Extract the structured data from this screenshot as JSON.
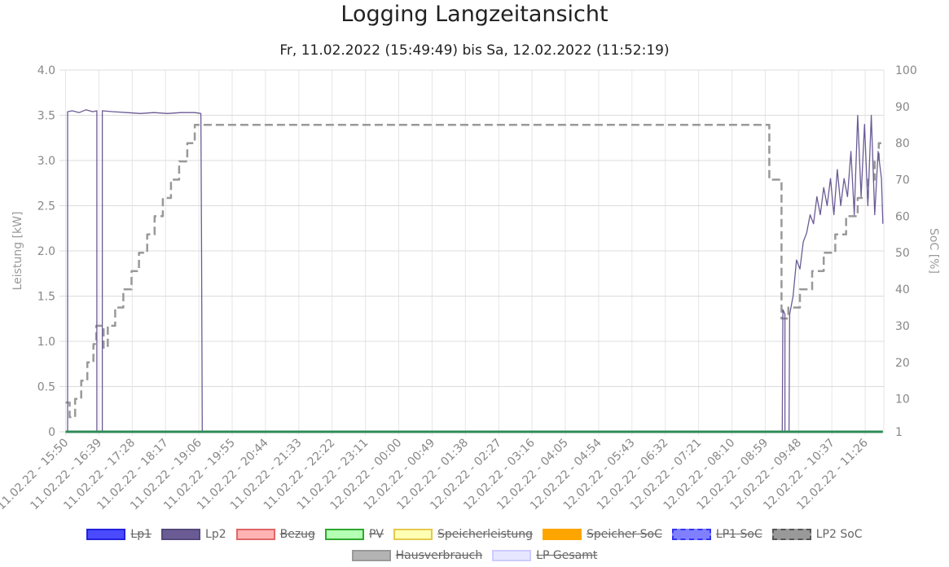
{
  "chart_data": {
    "type": "line",
    "title": "Logging Langzeitansicht",
    "subtitle": "Fr, 11.02.2022 (15:49:49) bis Sa, 12.02.2022 (11:52:19)",
    "ylabel": "Leistung [kW]",
    "y2label": "SoC [%]",
    "ylim": [
      0,
      4.0
    ],
    "y2lim": [
      1,
      100
    ],
    "y_ticks": [
      "0",
      "0.5",
      "1.0",
      "1.5",
      "2.0",
      "2.5",
      "3.0",
      "3.5",
      "4.0"
    ],
    "y2_ticks": [
      "1",
      "10",
      "20",
      "30",
      "40",
      "50",
      "60",
      "70",
      "80",
      "90",
      "100"
    ],
    "x_ticks": [
      "11.02.22 - 15:50",
      "11.02.22 - 16:39",
      "11.02.22 - 17:28",
      "11.02.22 - 18:17",
      "11.02.22 - 19:06",
      "11.02.22 - 19:55",
      "11.02.22 - 20:44",
      "11.02.22 - 21:33",
      "11.02.22 - 22:22",
      "11.02.22 - 23:11",
      "12.02.22 - 00:00",
      "12.02.22 - 00:49",
      "12.02.22 - 01:38",
      "12.02.22 - 02:27",
      "12.02.22 - 03:16",
      "12.02.22 - 04:05",
      "12.02.22 - 04:54",
      "12.02.22 - 05:43",
      "12.02.22 - 06:32",
      "12.02.22 - 07:21",
      "12.02.22 - 08:10",
      "12.02.22 - 08:59",
      "12.02.22 - 09:48",
      "12.02.22 - 10:37",
      "12.02.22 - 11:26"
    ],
    "grid": true,
    "legend_position": "bottom",
    "series": [
      {
        "name": "Lp2",
        "axis": "left",
        "color": "#6b5b95",
        "style": "solid",
        "points": [
          [
            "11.02.22 - 15:50",
            0
          ],
          [
            "11.02.22 - 15:53",
            0
          ],
          [
            "11.02.22 - 15:53",
            3.54
          ],
          [
            "11.02.22 - 16:00",
            3.55
          ],
          [
            "11.02.22 - 16:10",
            3.53
          ],
          [
            "11.02.22 - 16:20",
            3.56
          ],
          [
            "11.02.22 - 16:30",
            3.54
          ],
          [
            "11.02.22 - 16:36",
            3.55
          ],
          [
            "11.02.22 - 16:36",
            0
          ],
          [
            "11.02.22 - 16:44",
            0
          ],
          [
            "11.02.22 - 16:44",
            3.55
          ],
          [
            "11.02.22 - 17:00",
            3.54
          ],
          [
            "11.02.22 - 17:20",
            3.53
          ],
          [
            "11.02.22 - 17:40",
            3.52
          ],
          [
            "11.02.22 - 18:00",
            3.53
          ],
          [
            "11.02.22 - 18:20",
            3.52
          ],
          [
            "11.02.22 - 18:40",
            3.53
          ],
          [
            "11.02.22 - 19:00",
            3.53
          ],
          [
            "11.02.22 - 19:09",
            3.52
          ],
          [
            "11.02.22 - 19:10",
            2.1
          ],
          [
            "11.02.22 - 19:11",
            0
          ],
          [
            "12.02.22 - 09:24",
            0
          ],
          [
            "12.02.22 - 09:25",
            1.35
          ],
          [
            "12.02.22 - 09:28",
            1.3
          ],
          [
            "12.02.22 - 09:28",
            0
          ],
          [
            "12.02.22 - 09:34",
            0
          ],
          [
            "12.02.22 - 09:35",
            1.3
          ],
          [
            "12.02.22 - 09:40",
            1.5
          ],
          [
            "12.02.22 - 09:45",
            1.9
          ],
          [
            "12.02.22 - 09:50",
            1.8
          ],
          [
            "12.02.22 - 09:55",
            2.1
          ],
          [
            "12.02.22 - 10:00",
            2.2
          ],
          [
            "12.02.22 - 10:05",
            2.4
          ],
          [
            "12.02.22 - 10:10",
            2.3
          ],
          [
            "12.02.22 - 10:15",
            2.6
          ],
          [
            "12.02.22 - 10:20",
            2.4
          ],
          [
            "12.02.22 - 10:25",
            2.7
          ],
          [
            "12.02.22 - 10:30",
            2.5
          ],
          [
            "12.02.22 - 10:35",
            2.8
          ],
          [
            "12.02.22 - 10:40",
            2.4
          ],
          [
            "12.02.22 - 10:45",
            2.9
          ],
          [
            "12.02.22 - 10:50",
            2.5
          ],
          [
            "12.02.22 - 10:55",
            2.8
          ],
          [
            "12.02.22 - 11:00",
            2.6
          ],
          [
            "12.02.22 - 11:05",
            3.1
          ],
          [
            "12.02.22 - 11:10",
            2.4
          ],
          [
            "12.02.22 - 11:15",
            3.5
          ],
          [
            "12.02.22 - 11:20",
            2.6
          ],
          [
            "12.02.22 - 11:25",
            3.4
          ],
          [
            "12.02.22 - 11:30",
            2.5
          ],
          [
            "12.02.22 - 11:35",
            3.5
          ],
          [
            "12.02.22 - 11:40",
            2.4
          ],
          [
            "12.02.22 - 11:45",
            3.1
          ],
          [
            "12.02.22 - 11:50",
            2.8
          ],
          [
            "12.02.22 - 11:52",
            2.3
          ]
        ]
      },
      {
        "name": "LP2 SoC",
        "axis": "right",
        "color": "#999999",
        "style": "dashed",
        "points": [
          [
            "11.02.22 - 15:50",
            9
          ],
          [
            "11.02.22 - 15:56",
            9
          ],
          [
            "11.02.22 - 15:56",
            5
          ],
          [
            "11.02.22 - 16:04",
            5
          ],
          [
            "11.02.22 - 16:04",
            10
          ],
          [
            "11.02.22 - 16:13",
            10
          ],
          [
            "11.02.22 - 16:13",
            15
          ],
          [
            "11.02.22 - 16:22",
            15
          ],
          [
            "11.02.22 - 16:22",
            20
          ],
          [
            "11.02.22 - 16:31",
            20
          ],
          [
            "11.02.22 - 16:31",
            25
          ],
          [
            "11.02.22 - 16:35",
            25
          ],
          [
            "11.02.22 - 16:35",
            30
          ],
          [
            "11.02.22 - 16:46",
            30
          ],
          [
            "11.02.22 - 16:46",
            24
          ],
          [
            "11.02.22 - 16:52",
            24
          ],
          [
            "11.02.22 - 16:52",
            30
          ],
          [
            "11.02.22 - 17:03",
            30
          ],
          [
            "11.02.22 - 17:03",
            35
          ],
          [
            "11.02.22 - 17:15",
            35
          ],
          [
            "11.02.22 - 17:15",
            40
          ],
          [
            "11.02.22 - 17:27",
            40
          ],
          [
            "11.02.22 - 17:27",
            45
          ],
          [
            "11.02.22 - 17:38",
            45
          ],
          [
            "11.02.22 - 17:38",
            50
          ],
          [
            "11.02.22 - 17:50",
            50
          ],
          [
            "11.02.22 - 17:50",
            55
          ],
          [
            "11.02.22 - 18:01",
            55
          ],
          [
            "11.02.22 - 18:01",
            60
          ],
          [
            "11.02.22 - 18:13",
            60
          ],
          [
            "11.02.22 - 18:13",
            65
          ],
          [
            "11.02.22 - 18:25",
            65
          ],
          [
            "11.02.22 - 18:25",
            70
          ],
          [
            "11.02.22 - 18:37",
            70
          ],
          [
            "11.02.22 - 18:37",
            75
          ],
          [
            "11.02.22 - 18:49",
            75
          ],
          [
            "11.02.22 - 18:49",
            80
          ],
          [
            "11.02.22 - 19:00",
            80
          ],
          [
            "11.02.22 - 19:00",
            85
          ],
          [
            "12.02.22 - 09:05",
            85
          ],
          [
            "12.02.22 - 09:05",
            70
          ],
          [
            "12.02.22 - 09:23",
            70
          ],
          [
            "12.02.22 - 09:23",
            32
          ],
          [
            "12.02.22 - 09:33",
            32
          ],
          [
            "12.02.22 - 09:33",
            35
          ],
          [
            "12.02.22 - 09:50",
            35
          ],
          [
            "12.02.22 - 09:50",
            40
          ],
          [
            "12.02.22 - 10:08",
            40
          ],
          [
            "12.02.22 - 10:08",
            45
          ],
          [
            "12.02.22 - 10:25",
            45
          ],
          [
            "12.02.22 - 10:25",
            50
          ],
          [
            "12.02.22 - 10:42",
            50
          ],
          [
            "12.02.22 - 10:42",
            55
          ],
          [
            "12.02.22 - 10:58",
            55
          ],
          [
            "12.02.22 - 10:58",
            60
          ],
          [
            "12.02.22 - 11:15",
            60
          ],
          [
            "12.02.22 - 11:15",
            65
          ],
          [
            "12.02.22 - 11:30",
            65
          ],
          [
            "12.02.22 - 11:30",
            70
          ],
          [
            "12.02.22 - 11:40",
            70
          ],
          [
            "12.02.22 - 11:40",
            75
          ],
          [
            "12.02.22 - 11:46",
            75
          ],
          [
            "12.02.22 - 11:46",
            80
          ],
          [
            "12.02.22 - 11:52",
            80
          ]
        ]
      },
      {
        "name": "PV",
        "axis": "left",
        "color": "#2e8b57",
        "style": "solid",
        "points": [
          [
            "11.02.22 - 15:50",
            0
          ],
          [
            "12.02.22 - 11:52",
            0
          ]
        ]
      }
    ]
  },
  "legend": [
    {
      "label": "Lp1",
      "fill": "#4a4aff",
      "border": "#2222dd",
      "dashed": false,
      "hidden": true
    },
    {
      "label": "Lp2",
      "fill": "#6b5b95",
      "border": "#55487a",
      "dashed": false,
      "hidden": false
    },
    {
      "label": "Bezug",
      "fill": "#ffb3b3",
      "border": "#e06666",
      "dashed": false,
      "hidden": true
    },
    {
      "label": "PV",
      "fill": "#b3ffb3",
      "border": "#2ea82e",
      "dashed": false,
      "hidden": true
    },
    {
      "label": "Speicherleistung",
      "fill": "#ffffb3",
      "border": "#e6c84d",
      "dashed": false,
      "hidden": true
    },
    {
      "label": "Speicher SoC",
      "fill": "#ffa500",
      "border": "#ffa500",
      "dashed": true,
      "hidden": true
    },
    {
      "label": "LP1 SoC",
      "fill": "#8080ff",
      "border": "#3333ee",
      "dashed": true,
      "hidden": true
    },
    {
      "label": "LP2 SoC",
      "fill": "#999999",
      "border": "#555555",
      "dashed": true,
      "hidden": false
    },
    {
      "label": "Hausverbrauch",
      "fill": "#b3b3b3",
      "border": "#999999",
      "dashed": false,
      "hidden": true
    },
    {
      "label": "LP Gesamt",
      "fill": "#e6e6ff",
      "border": "#ccccff",
      "dashed": false,
      "hidden": true
    }
  ]
}
